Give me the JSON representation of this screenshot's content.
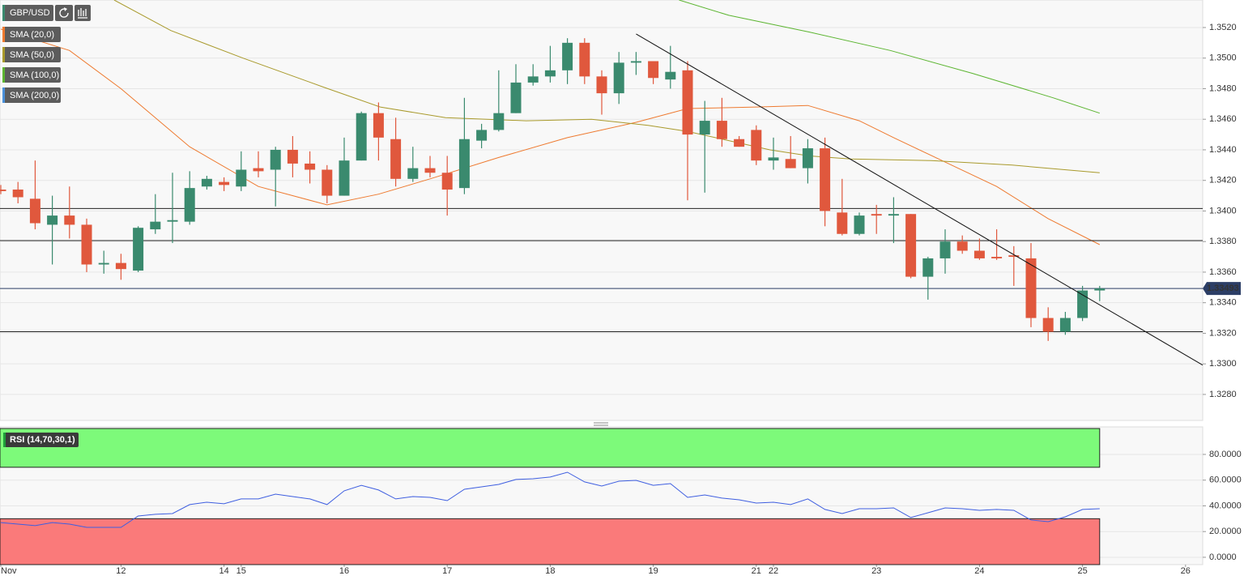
{
  "chart_data": [
    {
      "type": "candlestick",
      "title": "GBP/USD",
      "categories": [
        "Nov",
        null,
        null,
        null,
        null,
        null,
        null,
        "12",
        null,
        null,
        null,
        null,
        null,
        "14",
        "15",
        null,
        null,
        null,
        null,
        null,
        "16",
        null,
        null,
        null,
        null,
        null,
        "17",
        null,
        null,
        null,
        null,
        null,
        "18",
        null,
        null,
        null,
        null,
        null,
        "19",
        null,
        null,
        null,
        null,
        null,
        "21",
        "22",
        null,
        null,
        null,
        null,
        null,
        "23",
        null,
        null,
        null,
        null,
        null,
        "24",
        null,
        null,
        null,
        null,
        null,
        "25",
        null,
        null,
        null,
        null,
        null,
        "26"
      ],
      "open": [
        1.3414,
        1.3414,
        1.3408,
        1.3391,
        1.3397,
        1.3391,
        1.3365,
        1.3366,
        1.3361,
        1.3388,
        1.3393,
        1.3393,
        1.3416,
        1.3419,
        1.3416,
        1.3428,
        1.3427,
        1.344,
        1.3431,
        1.3427,
        1.341,
        1.3433,
        1.3464,
        1.3447,
        1.3421,
        1.3428,
        1.3425,
        1.3415,
        1.3446,
        1.3453,
        1.3464,
        1.3484,
        1.3488,
        1.3492,
        1.351,
        1.3488,
        1.3477,
        1.3497,
        1.3498,
        1.3486,
        1.3492,
        1.345,
        1.3459,
        1.3447,
        1.3453,
        1.3433,
        1.3434,
        1.3428,
        1.3441,
        1.3399,
        1.3385,
        1.3398,
        1.3397,
        1.3398,
        1.3357,
        1.3369,
        1.338,
        1.3374,
        1.337,
        1.3371,
        1.3369,
        1.333,
        1.3321,
        1.333,
        1.3348,
        null,
        null,
        null,
        null,
        null
      ],
      "high": [
        1.3417,
        1.3419,
        1.3433,
        1.341,
        1.3416,
        1.3395,
        1.3374,
        1.3372,
        1.339,
        1.3411,
        1.3425,
        1.3426,
        1.3423,
        1.3422,
        1.3439,
        1.3439,
        1.3442,
        1.3449,
        1.3439,
        1.343,
        1.3448,
        1.3465,
        1.3471,
        1.3461,
        1.3442,
        1.3436,
        1.3436,
        1.3474,
        1.3457,
        1.3492,
        1.3496,
        1.3496,
        1.3508,
        1.3513,
        1.3513,
        1.3492,
        1.3504,
        1.3504,
        1.3498,
        1.3508,
        1.3498,
        1.3472,
        1.3474,
        1.3449,
        1.3456,
        1.3448,
        1.3449,
        1.3447,
        1.3448,
        1.3421,
        1.3399,
        1.3404,
        1.3409,
        1.3398,
        1.337,
        1.3388,
        1.3384,
        1.3382,
        1.3388,
        1.3377,
        1.3379,
        1.3337,
        1.3334,
        1.3351,
        1.3351,
        null,
        null,
        null,
        null,
        null
      ],
      "low": [
        1.3411,
        1.3405,
        1.3388,
        1.3365,
        1.3382,
        1.336,
        1.3359,
        1.3355,
        1.336,
        1.3385,
        1.3379,
        1.3391,
        1.3414,
        1.3413,
        1.3413,
        1.3422,
        1.3403,
        1.3422,
        1.3418,
        1.3405,
        1.341,
        1.3433,
        1.3433,
        1.3416,
        1.3419,
        1.3422,
        1.3397,
        1.3411,
        1.3441,
        1.3452,
        1.3464,
        1.3482,
        1.3484,
        1.3483,
        1.3483,
        1.3463,
        1.347,
        1.3489,
        1.3483,
        1.348,
        1.3407,
        1.3412,
        1.3442,
        1.3442,
        1.343,
        1.3427,
        1.3428,
        1.3418,
        1.339,
        1.3384,
        1.3384,
        1.3385,
        1.3379,
        1.3356,
        1.3342,
        1.3359,
        1.3372,
        1.3368,
        1.3368,
        1.3351,
        1.3324,
        1.3315,
        1.3319,
        1.3328,
        1.3341,
        null,
        null,
        null,
        null,
        null
      ],
      "close": [
        1.3413,
        1.3409,
        1.3392,
        1.3397,
        1.3391,
        1.3365,
        1.3366,
        1.3362,
        1.3389,
        1.3393,
        1.3394,
        1.3415,
        1.3421,
        1.3417,
        1.3427,
        1.3426,
        1.344,
        1.3431,
        1.3427,
        1.341,
        1.3433,
        1.3464,
        1.3448,
        1.3421,
        1.3428,
        1.3425,
        1.3414,
        1.3447,
        1.3453,
        1.3464,
        1.3484,
        1.3488,
        1.3492,
        1.351,
        1.3488,
        1.3477,
        1.3497,
        1.3498,
        1.3487,
        1.3491,
        1.345,
        1.3459,
        1.3447,
        1.3442,
        1.3433,
        1.3435,
        1.3428,
        1.3441,
        1.34,
        1.3385,
        1.3397,
        1.3397,
        1.3398,
        1.3357,
        1.3369,
        1.338,
        1.3374,
        1.3369,
        1.3369,
        1.337,
        1.333,
        1.3321,
        1.333,
        1.3348,
        1.33493,
        null,
        null,
        null,
        null,
        null
      ],
      "up_color": "#3a8a6e",
      "down_color": "#e0583d",
      "indicators": [
        {
          "name": "SMA (20,0)",
          "color": "#ee7a30",
          "x": [
            0,
            4,
            7,
            11,
            15,
            19,
            22,
            25,
            29,
            33,
            37,
            40,
            44,
            47,
            50,
            52,
            55,
            58,
            61,
            64
          ],
          "values": [
            1.3519,
            1.3505,
            1.348,
            1.3442,
            1.3416,
            1.3404,
            1.3411,
            1.3421,
            1.3435,
            1.3448,
            1.3458,
            1.3467,
            1.3468,
            1.3469,
            1.3459,
            1.3448,
            1.3432,
            1.3416,
            1.3395,
            1.3378
          ]
        },
        {
          "name": "SMA (50,0)",
          "color": "#a99a2c",
          "x": [
            6.6,
            9.9,
            14.1,
            18.8,
            22.1,
            25.9,
            30.6,
            34.4,
            37.7,
            40,
            42.4,
            44.8,
            47.1,
            49.5,
            54.2,
            58.9,
            64
          ],
          "values": [
            1.3538,
            1.3518,
            1.35,
            1.3481,
            1.3468,
            1.3461,
            1.3459,
            1.346,
            1.3456,
            1.3452,
            1.3446,
            1.344,
            1.3436,
            1.3434,
            1.3433,
            1.343,
            1.3425
          ]
        },
        {
          "name": "SMA (100,0)",
          "color": "#5cb531",
          "x": [
            39.5,
            42.4,
            47.1,
            51.8,
            56.6,
            61.3,
            64
          ],
          "values": [
            1.3538,
            1.3528,
            1.3517,
            1.3505,
            1.349,
            1.3474,
            1.3464
          ]
        },
        {
          "name": "SMA (200,0)",
          "color": "#4a90d9"
        }
      ],
      "hlines": [
        1.34016,
        1.33806,
        1.3321
      ],
      "trendline": {
        "x": [
          37,
          70
        ],
        "values": [
          1.35158,
          1.32992
        ]
      },
      "last_price": 1.33493,
      "ylim": [
        1.3263,
        1.3538
      ],
      "yticks": [
        {
          "value": 1.328,
          "label": "1.3280"
        },
        {
          "value": 1.33,
          "label": "1.3300"
        },
        {
          "value": 1.332,
          "label": "1.3320"
        },
        {
          "value": 1.334,
          "label": "1.3340"
        },
        {
          "value": 1.336,
          "label": "1.3360"
        },
        {
          "value": 1.338,
          "label": "1.3380"
        },
        {
          "value": 1.34,
          "label": "1.3400"
        },
        {
          "value": 1.342,
          "label": "1.3420"
        },
        {
          "value": 1.344,
          "label": "1.3440"
        },
        {
          "value": 1.346,
          "label": "1.3460"
        },
        {
          "value": 1.348,
          "label": "1.3480"
        },
        {
          "value": 1.35,
          "label": "1.3500"
        },
        {
          "value": 1.352,
          "label": "1.3520"
        }
      ],
      "grid": true
    },
    {
      "type": "line",
      "title": "RSI (14,70,30,1)",
      "values": [
        27,
        25.8,
        24.6,
        27,
        25.8,
        23.3,
        23.3,
        23.3,
        32.1,
        33.4,
        34,
        41,
        42.8,
        41.6,
        45.4,
        45.4,
        49.1,
        47.2,
        45.4,
        41,
        51.7,
        56,
        52.3,
        45.4,
        47.2,
        46.6,
        44.1,
        52.9,
        54.8,
        56.7,
        60.5,
        61.1,
        62.4,
        66.1,
        58.6,
        55.4,
        59.2,
        59.8,
        56,
        57.3,
        46.6,
        48.5,
        46,
        44.7,
        42.2,
        42.8,
        41,
        45.4,
        37.2,
        34,
        37.8,
        37.8,
        38.4,
        30.9,
        34.6,
        38.4,
        37.8,
        36.5,
        37.2,
        36.5,
        29,
        27.7,
        31.5,
        37.2,
        37.8,
        null,
        null,
        null,
        null,
        null
      ],
      "color": "#3e5ee0",
      "overbought": 70,
      "oversold": 30,
      "overbought_color": "#7dfa7a",
      "oversold_color": "#fa7a7a",
      "ylim": [
        -5.7,
        101.4
      ],
      "yticks": [
        {
          "value": 0,
          "label": "0.0000"
        },
        {
          "value": 20,
          "label": "20.0000"
        },
        {
          "value": 40,
          "label": "40.0000"
        },
        {
          "value": 60,
          "label": "60.0000"
        },
        {
          "value": 80,
          "label": "80.0000"
        }
      ],
      "grid": true
    }
  ]
}
